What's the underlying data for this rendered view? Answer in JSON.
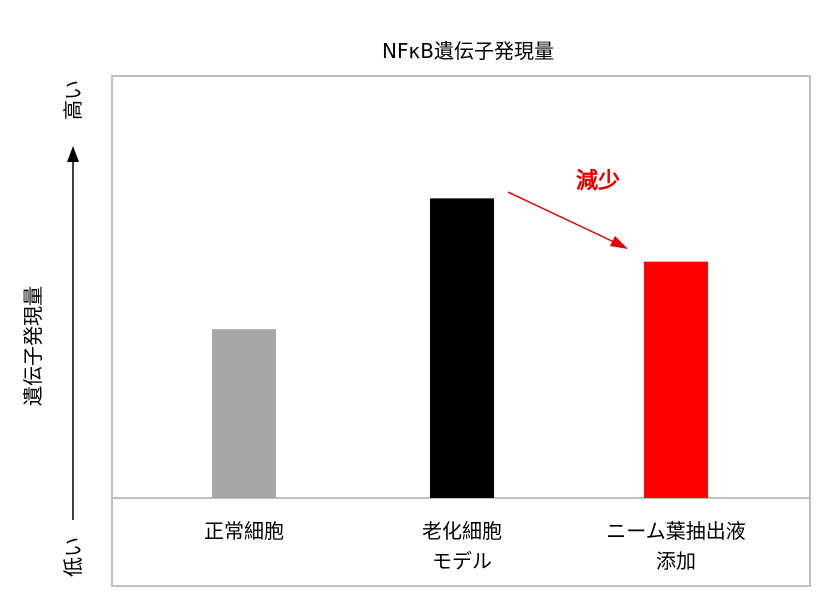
{
  "chart_data": {
    "type": "bar",
    "title": "NFκB遺伝子発現量",
    "ylabel": "遺伝子発現量",
    "y_high_label": "高い",
    "y_low_label": "低い",
    "ylim": [
      0,
      100
    ],
    "grid": false,
    "categories": [
      [
        "正常細胞"
      ],
      [
        "老化細胞",
        "モデル"
      ],
      [
        "ニーム葉抽出液",
        "添加"
      ]
    ],
    "values": [
      40,
      71,
      56
    ],
    "colors": [
      "#a6a6a6",
      "#000000",
      "#ff0000"
    ],
    "annotation": {
      "text": "減少",
      "color": "#e00000"
    }
  }
}
